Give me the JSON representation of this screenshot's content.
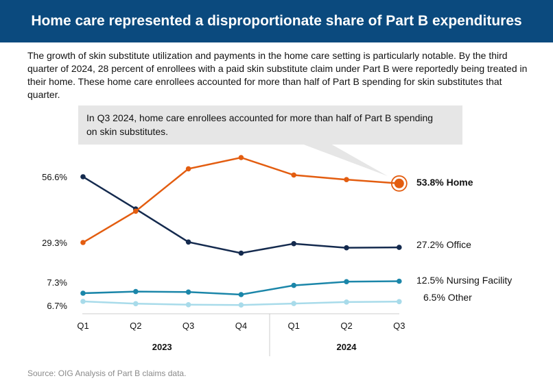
{
  "header": {
    "title": "Home care represented a disproportionate share of Part B expenditures"
  },
  "intro": {
    "text": "The growth of skin substitute utilization and payments in the home care setting is particularly notable.  By the third quarter of 2024, 28 percent of enrollees with a paid skin substitute claim under Part B were reportedly being treated in their home.  These home care enrollees accounted for more than half of Part B spending for skin substitutes that quarter."
  },
  "callout": {
    "text": "In Q3 2024, home care enrollees accounted for more than half of Part B spending on skin substitutes."
  },
  "source": "Source: OIG Analysis of Part B claims data.",
  "colors": {
    "banner": "#0b4a7e",
    "home": "#e35d10",
    "office": "#142a4e",
    "nursing": "#1b86a9",
    "other": "#a8dbea",
    "callout_bg": "#e6e6e6"
  },
  "chart_data": {
    "type": "line",
    "categories": [
      "Q1",
      "Q2",
      "Q3",
      "Q4",
      "Q1",
      "Q2",
      "Q3"
    ],
    "years": [
      {
        "label": "2023",
        "quarters": 4
      },
      {
        "label": "2024",
        "quarters": 3
      }
    ],
    "series": [
      {
        "name": "Home",
        "key": "home",
        "values": [
          29.3,
          42.3,
          60.8,
          66.7,
          57.5,
          55.4,
          53.8
        ],
        "end_label": "53.8% Home",
        "start_label": ""
      },
      {
        "name": "Office",
        "key": "office",
        "values": [
          56.6,
          43.2,
          29.5,
          24.7,
          28.8,
          27.0,
          27.2
        ],
        "end_label": "27.2% Office",
        "start_label": ""
      },
      {
        "name": "Nursing Facility",
        "key": "nursing",
        "values": [
          7.3,
          8.0,
          7.8,
          7.2,
          10.7,
          12.3,
          12.5
        ],
        "end_label": "12.5% Nursing Facility",
        "start_label": ""
      },
      {
        "name": "Other",
        "key": "other",
        "values": [
          6.7,
          4.5,
          3.5,
          3.2,
          4.6,
          6.1,
          6.5
        ],
        "end_label": "6.5% Other",
        "start_label": ""
      }
    ],
    "y_labels": [
      "56.6%",
      "29.3%",
      "7.3%",
      "6.7%"
    ],
    "ylim": [
      0,
      70
    ]
  }
}
